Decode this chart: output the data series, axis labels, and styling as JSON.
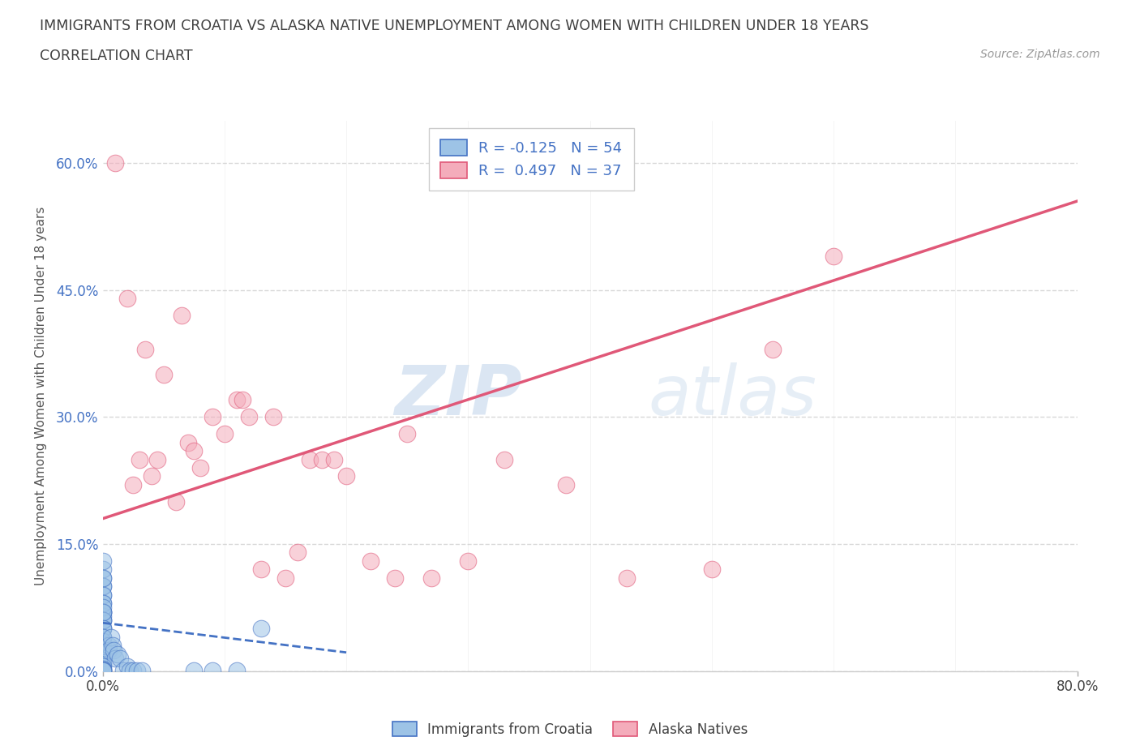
{
  "title_line1": "IMMIGRANTS FROM CROATIA VS ALASKA NATIVE UNEMPLOYMENT AMONG WOMEN WITH CHILDREN UNDER 18 YEARS",
  "title_line2": "CORRELATION CHART",
  "source_text": "Source: ZipAtlas.com",
  "ylabel_text": "Unemployment Among Women with Children Under 18 years",
  "xlim": [
    0.0,
    0.8
  ],
  "ylim": [
    0.0,
    0.65
  ],
  "xtick_labels": [
    "0.0%",
    "80.0%"
  ],
  "xtick_positions": [
    0.0,
    0.8
  ],
  "ytick_labels": [
    "0.0%",
    "15.0%",
    "30.0%",
    "45.0%",
    "60.0%"
  ],
  "ytick_positions": [
    0.0,
    0.15,
    0.3,
    0.45,
    0.6
  ],
  "watermark_zip": "ZIP",
  "watermark_atlas": "atlas",
  "line_blue_color": "#4472c4",
  "line_pink_color": "#e05878",
  "scatter_blue_color": "#9dc3e6",
  "scatter_blue_edge": "#4472c4",
  "scatter_pink_color": "#f4acbb",
  "scatter_pink_edge": "#e05878",
  "grid_color": "#c8c8c8",
  "background_color": "#ffffff",
  "title_color": "#404040",
  "tick_color_x": "#404040",
  "tick_color_y": "#4472c4",
  "blue_points_x": [
    0.0,
    0.0,
    0.0,
    0.0,
    0.0,
    0.0,
    0.0,
    0.0,
    0.0,
    0.0,
    0.0,
    0.0,
    0.0,
    0.0,
    0.0,
    0.0,
    0.0,
    0.0,
    0.0,
    0.0,
    0.0,
    0.0,
    0.0,
    0.0,
    0.0,
    0.0,
    0.0,
    0.0,
    0.0,
    0.0,
    0.005,
    0.005,
    0.007,
    0.008,
    0.009,
    0.01,
    0.012,
    0.014,
    0.017,
    0.02,
    0.022,
    0.025,
    0.028,
    0.032,
    0.075,
    0.09,
    0.11,
    0.13,
    0.0,
    0.0,
    0.0,
    0.0,
    0.0,
    0.0
  ],
  "blue_points_y": [
    0.05,
    0.07,
    0.09,
    0.1,
    0.11,
    0.12,
    0.13,
    0.07,
    0.06,
    0.08,
    0.1,
    0.09,
    0.065,
    0.07,
    0.08,
    0.11,
    0.075,
    0.06,
    0.05,
    0.04,
    0.06,
    0.07,
    0.05,
    0.03,
    0.02,
    0.015,
    0.035,
    0.01,
    0.008,
    0.04,
    0.03,
    0.025,
    0.04,
    0.03,
    0.025,
    0.015,
    0.02,
    0.015,
    0.001,
    0.005,
    0.001,
    0.001,
    0.001,
    0.001,
    0.001,
    0.001,
    0.001,
    0.05,
    0.005,
    0.003,
    0.002,
    0.001,
    0.001,
    0.001
  ],
  "pink_points_x": [
    0.01,
    0.02,
    0.03,
    0.04,
    0.05,
    0.06,
    0.07,
    0.08,
    0.09,
    0.1,
    0.11,
    0.12,
    0.13,
    0.14,
    0.15,
    0.16,
    0.17,
    0.18,
    0.19,
    0.2,
    0.22,
    0.24,
    0.27,
    0.3,
    0.33,
    0.38,
    0.43,
    0.5,
    0.55,
    0.6,
    0.065,
    0.035,
    0.025,
    0.075,
    0.045,
    0.115,
    0.25
  ],
  "pink_points_y": [
    0.6,
    0.44,
    0.25,
    0.23,
    0.35,
    0.2,
    0.27,
    0.24,
    0.3,
    0.28,
    0.32,
    0.3,
    0.12,
    0.3,
    0.11,
    0.14,
    0.25,
    0.25,
    0.25,
    0.23,
    0.13,
    0.11,
    0.11,
    0.13,
    0.25,
    0.22,
    0.11,
    0.12,
    0.38,
    0.49,
    0.42,
    0.38,
    0.22,
    0.26,
    0.25,
    0.32,
    0.28
  ],
  "pink_line_x0": 0.0,
  "pink_line_y0": 0.18,
  "pink_line_x1": 0.8,
  "pink_line_y1": 0.555,
  "blue_line_x0": 0.0,
  "blue_line_y0": 0.057,
  "blue_line_x1": 0.2,
  "blue_line_y1": 0.022
}
